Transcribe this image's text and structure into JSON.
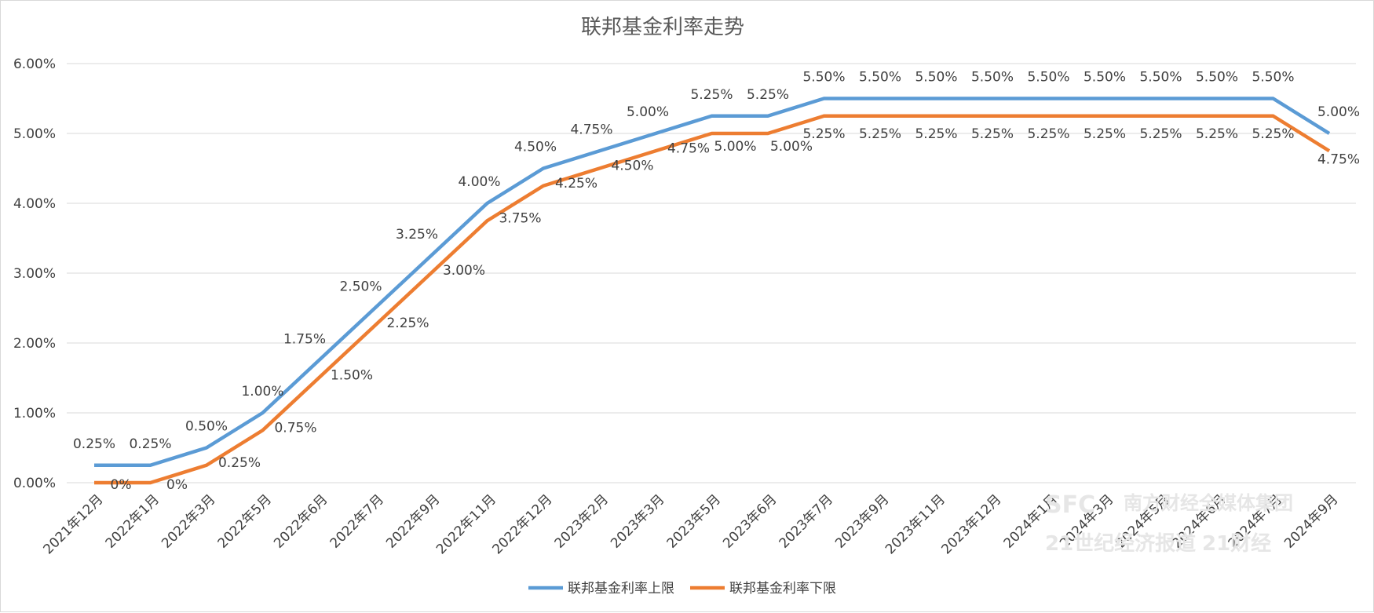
{
  "chart_data": {
    "type": "line",
    "title": "联邦基金利率走势",
    "categories": [
      "2021年12月",
      "2022年1月",
      "2022年3月",
      "2022年5月",
      "2022年6月",
      "2022年7月",
      "2022年9月",
      "2022年11月",
      "2022年12月",
      "2023年2月",
      "2023年3月",
      "2023年5月",
      "2023年6月",
      "2023年7月",
      "2023年9月",
      "2023年11月",
      "2023年12月",
      "2024年1月",
      "2024年3月",
      "2024年5月",
      "2024年6月",
      "2024年7月",
      "2024年9月"
    ],
    "series": [
      {
        "name": "联邦基金利率上限",
        "color": "#5b9bd5",
        "values": [
          0.25,
          0.25,
          0.5,
          1.0,
          1.75,
          2.5,
          3.25,
          4.0,
          4.5,
          4.75,
          5.0,
          5.25,
          5.25,
          5.5,
          5.5,
          5.5,
          5.5,
          5.5,
          5.5,
          5.5,
          5.5,
          5.5,
          5.0
        ],
        "labels": [
          "0.25%",
          "0.25%",
          "0.50%",
          "1.00%",
          "1.75%",
          "2.50%",
          "3.25%",
          "4.00%",
          "4.50%",
          "4.75%",
          "5.00%",
          "5.25%",
          "5.25%",
          "5.50%",
          "5.50%",
          "5.50%",
          "5.50%",
          "5.50%",
          "5.50%",
          "5.50%",
          "5.50%",
          "5.50%",
          "5.00%"
        ]
      },
      {
        "name": "联邦基金利率下限",
        "color": "#ed7d31",
        "values": [
          0,
          0,
          0.25,
          0.75,
          1.5,
          2.25,
          3.0,
          3.75,
          4.25,
          4.5,
          4.75,
          5.0,
          5.0,
          5.25,
          5.25,
          5.25,
          5.25,
          5.25,
          5.25,
          5.25,
          5.25,
          5.25,
          4.75
        ],
        "labels": [
          "0%",
          "0%",
          "0.25%",
          "0.75%",
          "1.50%",
          "2.25%",
          "3.00%",
          "3.75%",
          "4.25%",
          "4.50%",
          "4.75%",
          "5.00%",
          "5.00%",
          "5.25%",
          "5.25%",
          "5.25%",
          "5.25%",
          "5.25%",
          "5.25%",
          "5.25%",
          "5.25%",
          "5.25%",
          "4.75%"
        ]
      }
    ],
    "ylim": [
      0,
      6
    ],
    "yticks": [
      "0.00%",
      "1.00%",
      "2.00%",
      "3.00%",
      "4.00%",
      "5.00%",
      "6.00%"
    ],
    "grid": true,
    "legend": "bottom",
    "xlabel": "",
    "ylabel": ""
  },
  "watermark": {
    "logo": "SFC",
    "text1": "南方财经全媒体集团",
    "text2": "21世纪经济报道",
    "text3": "21财经"
  }
}
